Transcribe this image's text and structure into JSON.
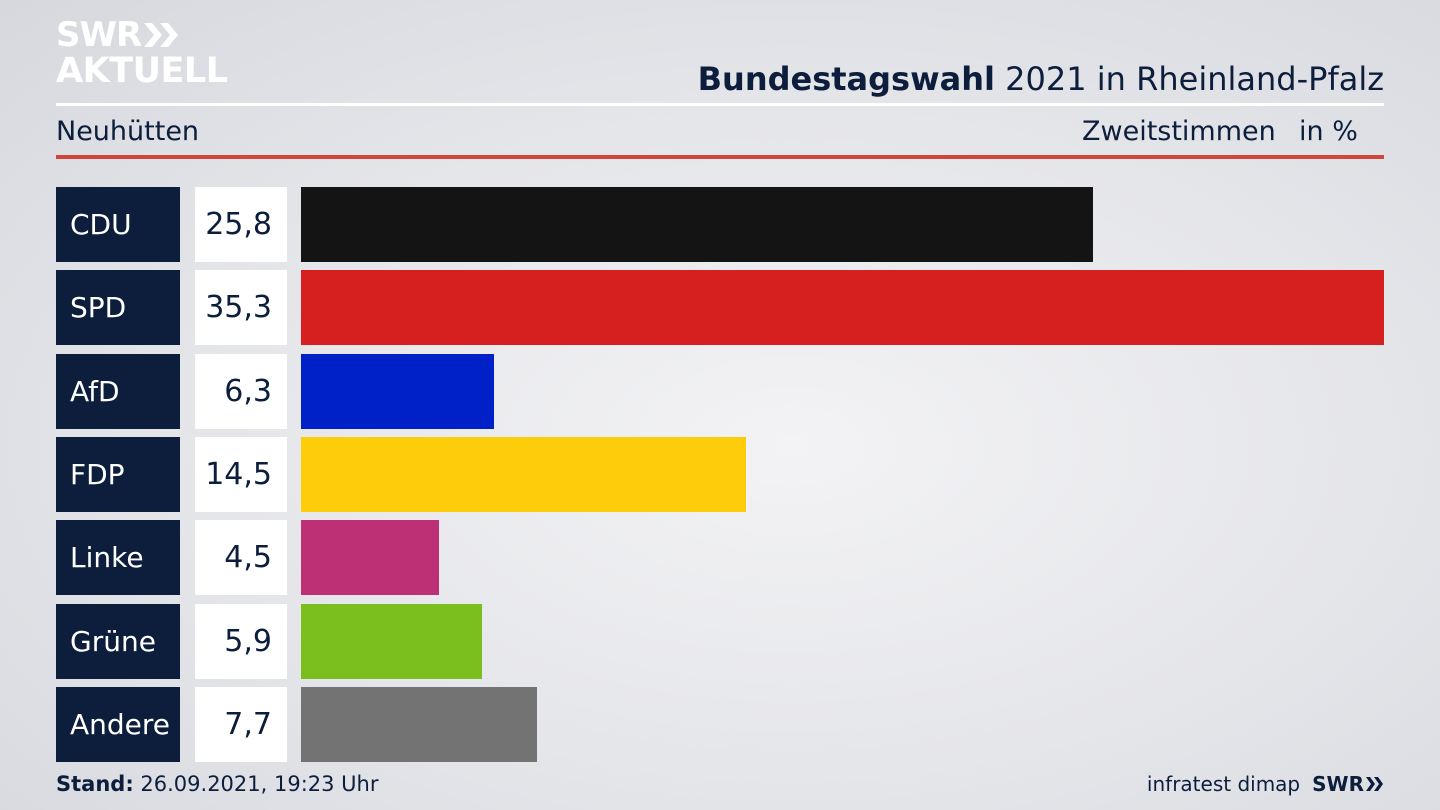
{
  "logo": {
    "line1": "SWR",
    "line2": "AKTUELL"
  },
  "header": {
    "title_bold": "Bundestagswahl",
    "title_rest": " 2021 in Rheinland-Pfalz"
  },
  "subheader": {
    "region": "Neuhütten",
    "vote_type": "Zweitstimmen",
    "unit": "in %"
  },
  "chart_data": {
    "type": "bar",
    "orientation": "horizontal",
    "title": "Bundestagswahl 2021 in Rheinland-Pfalz",
    "subtitle": "Neuhütten",
    "categories": [
      "CDU",
      "SPD",
      "AfD",
      "FDP",
      "Linke",
      "Grüne",
      "Andere"
    ],
    "values": [
      25.8,
      35.3,
      6.3,
      14.5,
      4.5,
      5.9,
      7.7
    ],
    "value_labels": [
      "25,8",
      "35,3",
      "6,3",
      "14,5",
      "4,5",
      "5,9",
      "7,7"
    ],
    "colors": [
      "#141414",
      "#d62020",
      "#0020c8",
      "#fdcc0a",
      "#be3075",
      "#7bbf1e",
      "#737373"
    ],
    "xlim": [
      0,
      35.3
    ],
    "grid": false
  },
  "footer": {
    "stand_label": "Stand:",
    "stand_value": " 26.09.2021, 19:23 Uhr",
    "source": "infratest dimap",
    "brand": "SWR"
  }
}
